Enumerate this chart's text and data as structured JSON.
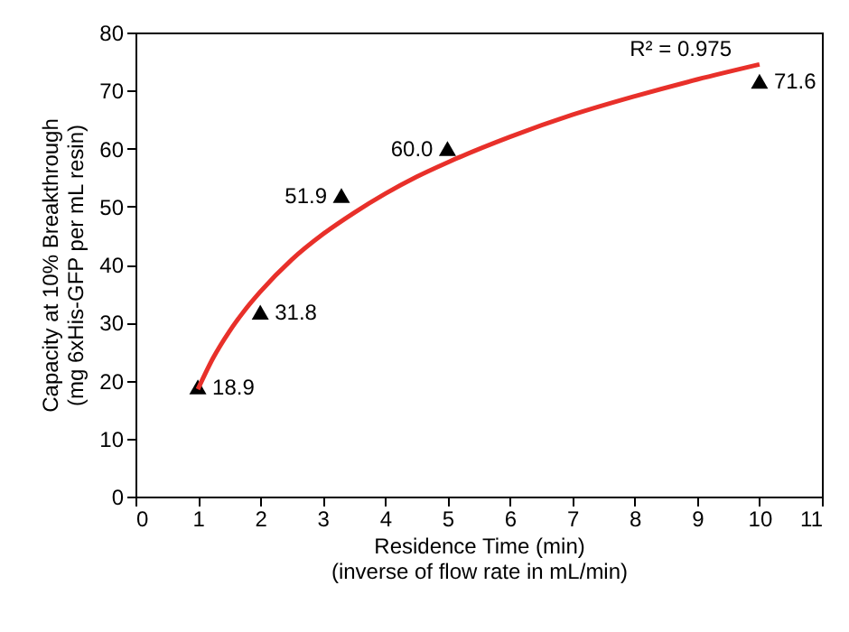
{
  "chart_data": {
    "type": "scatter",
    "xlabel": [
      "Residence Time (min)",
      "(inverse of flow rate in mL/min)"
    ],
    "ylabel": [
      "Capacity at 10% Breakthrough",
      "(mg 6xHis-GFP per mL resin)"
    ],
    "xlim": [
      0,
      11
    ],
    "xticks": [
      0,
      1,
      2,
      3,
      4,
      5,
      6,
      7,
      8,
      9,
      10,
      11
    ],
    "ylim": [
      0,
      80
    ],
    "yticks": [
      0,
      10,
      20,
      30,
      40,
      50,
      60,
      70,
      80
    ],
    "grid": false,
    "annotations": [
      "R² = 0.975"
    ],
    "series": [
      {
        "type": "scatter",
        "color": "#000000",
        "marker": "triangle",
        "x": [
          1,
          2,
          3.3,
          5,
          10
        ],
        "values": [
          18.9,
          31.8,
          51.9,
          60.0,
          71.6
        ],
        "value_labels": [
          "18.9",
          "31.8",
          "51.9",
          "60.0",
          "71.6"
        ]
      },
      {
        "type": "line",
        "color": "#e8302a",
        "marker": "none",
        "line_style": "solid",
        "x": [
          1,
          1.25,
          1.5,
          1.75,
          2,
          2.5,
          3,
          3.5,
          4,
          4.5,
          5,
          6,
          7,
          8,
          9,
          10
        ],
        "values": [
          18.5,
          24,
          28.4,
          32.1,
          35.3,
          40.8,
          45.2,
          48.9,
          52.2,
          55.1,
          57.6,
          62,
          65.8,
          69,
          71.9,
          74.5
        ]
      }
    ]
  }
}
